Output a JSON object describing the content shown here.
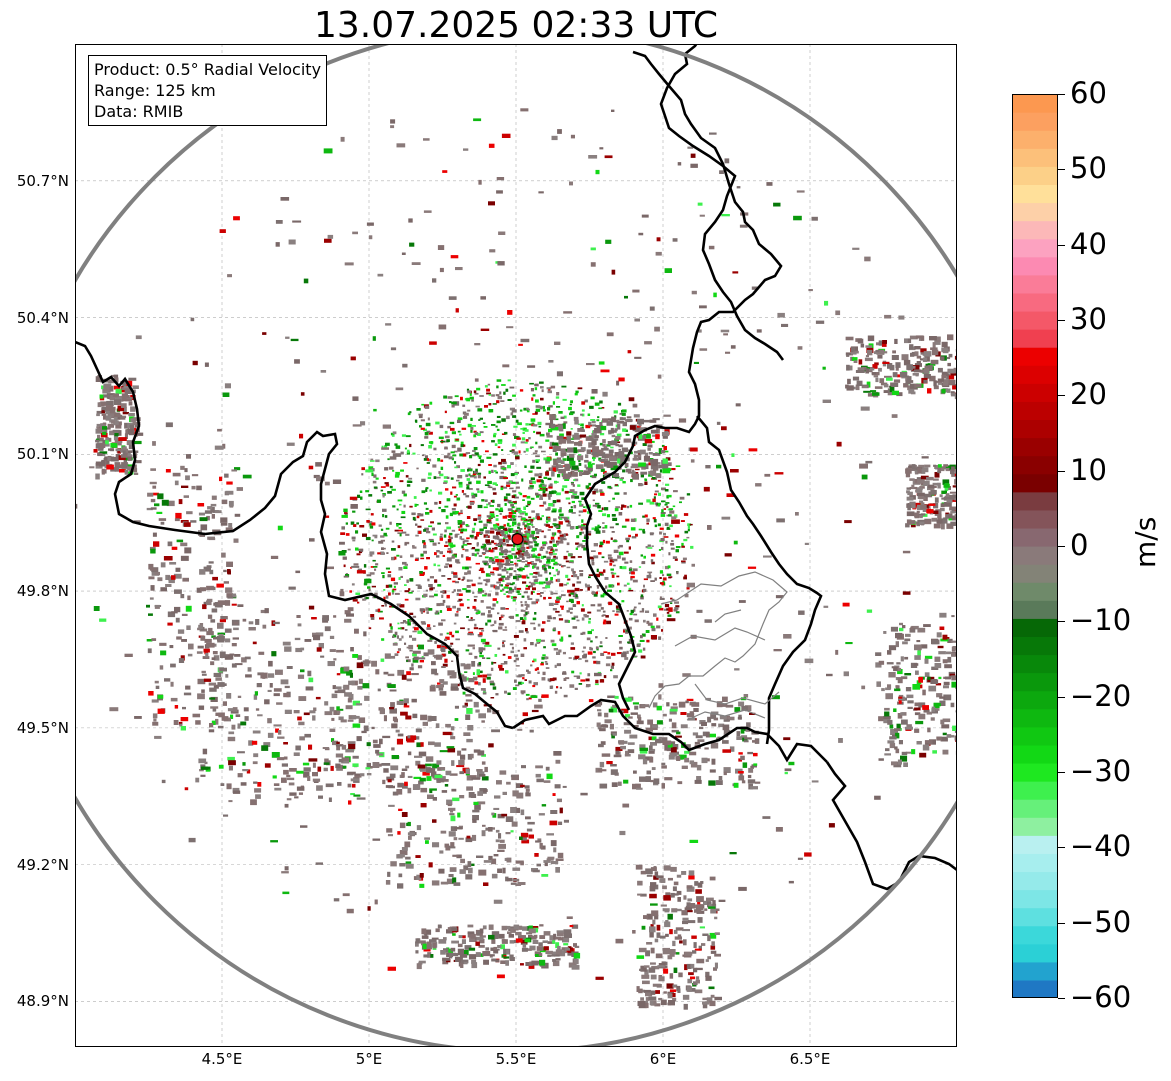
{
  "title": "13.07.2025 02:33 UTC",
  "info_box": {
    "product": "Product: 0.5° Radial Velocity",
    "range": "Range: 125 km",
    "data": "Data: RMIB"
  },
  "map": {
    "lon_range": [
      4.0,
      7.0
    ],
    "lat_range": [
      48.8,
      51.0
    ],
    "radar_site": {
      "lon": 5.505,
      "lat": 49.914
    },
    "range_km": 125,
    "range_ring_color": "#808080",
    "border_color": "#000000",
    "subdivision_color": "#808080",
    "marker_color": "#e8141a",
    "lat_ticks": [
      {
        "value": 50.7,
        "label": "50.7°N"
      },
      {
        "value": 50.4,
        "label": "50.4°N"
      },
      {
        "value": 50.1,
        "label": "50.1°N"
      },
      {
        "value": 49.8,
        "label": "49.8°N"
      },
      {
        "value": 49.5,
        "label": "49.5°N"
      },
      {
        "value": 49.2,
        "label": "49.2°N"
      },
      {
        "value": 48.9,
        "label": "48.9°N"
      }
    ],
    "lon_ticks": [
      {
        "value": 4.5,
        "label": "4.5°E"
      },
      {
        "value": 5.0,
        "label": "5°E"
      },
      {
        "value": 5.5,
        "label": "5.5°E"
      },
      {
        "value": 6.0,
        "label": "6°E"
      },
      {
        "value": 6.5,
        "label": "6.5°E"
      }
    ],
    "gridlines": true
  },
  "colorbar": {
    "label": "m/s",
    "min": -60,
    "max": 60,
    "ticks": [
      {
        "value": 60,
        "label": "60"
      },
      {
        "value": 50,
        "label": "50"
      },
      {
        "value": 40,
        "label": "40"
      },
      {
        "value": 30,
        "label": "30"
      },
      {
        "value": 20,
        "label": "20"
      },
      {
        "value": 10,
        "label": "10"
      },
      {
        "value": 0,
        "label": "0"
      },
      {
        "value": -10,
        "label": "−10"
      },
      {
        "value": -20,
        "label": "−20"
      },
      {
        "value": -30,
        "label": "−30"
      },
      {
        "value": -40,
        "label": "−40"
      },
      {
        "value": -50,
        "label": "−50"
      },
      {
        "value": -60,
        "label": "−60"
      }
    ],
    "colors": [
      "#1f78c4",
      "#22a3cf",
      "#2bd0d6",
      "#3bd8da",
      "#5ee0e0",
      "#7de6e6",
      "#95eaea",
      "#a7eeee",
      "#b9f0f0",
      "#8ef0a0",
      "#66f07a",
      "#3ef04e",
      "#1ee820",
      "#12d815",
      "#10c812",
      "#0eb810",
      "#0ca80e",
      "#0a980c",
      "#08880a",
      "#077808",
      "#066806",
      "#5a7a5a",
      "#6f8a6a",
      "#838377",
      "#8a7a7a",
      "#886870",
      "#84545a",
      "#7a3c40",
      "#7a0000",
      "#8a0000",
      "#9a0000",
      "#ac0000",
      "#bc0000",
      "#cc0000",
      "#dc0000",
      "#ec0000",
      "#f04050",
      "#f45868",
      "#f86a80",
      "#fa7c98",
      "#fc8ab2",
      "#fca2c0",
      "#fcb8b8",
      "#fdd0a8",
      "#ffe09a",
      "#fcd088",
      "#fcc07a",
      "#fcb06c",
      "#fca060",
      "#fc9850"
    ]
  }
}
